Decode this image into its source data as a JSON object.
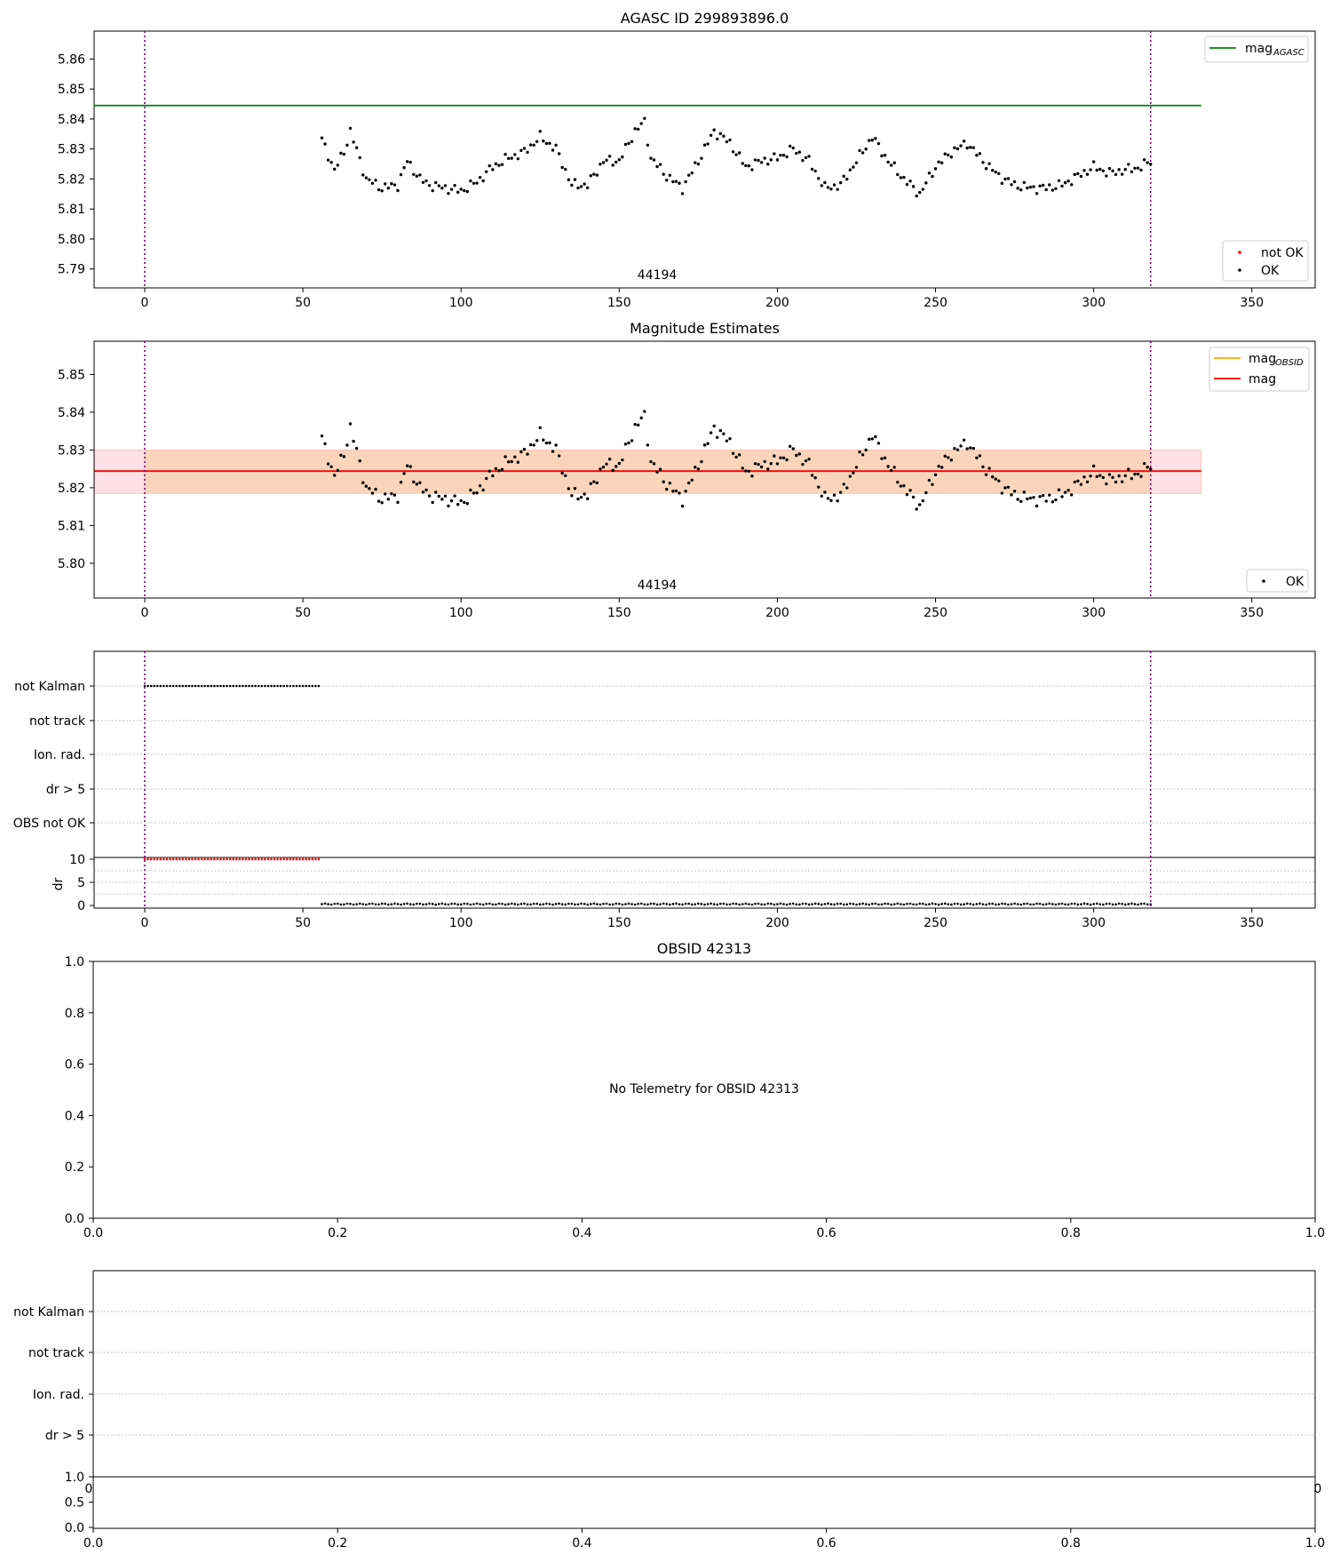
{
  "chart_data": [
    {
      "type": "scatter",
      "title": "AGASC ID 299893896.0",
      "annotation": "44194",
      "xticks": [
        0,
        50,
        100,
        150,
        200,
        250,
        300,
        350
      ],
      "yticks": [
        5.79,
        5.8,
        5.81,
        5.82,
        5.83,
        5.84,
        5.85,
        5.86
      ],
      "xlim": [
        -16,
        370
      ],
      "ylim": [
        5.7837,
        5.8693
      ],
      "legend": [
        {
          "label": "mag",
          "sub": "AGASC",
          "color": "#008000",
          "kind": "line",
          "placement": "top-right"
        },
        {
          "label": "not OK",
          "color": "#ff0000",
          "kind": "marker",
          "placement": "bottom-right"
        },
        {
          "label": "OK",
          "color": "#000000",
          "kind": "marker",
          "placement": "bottom-right"
        }
      ],
      "hlines": [
        {
          "name": "mag_AGASC",
          "y": 5.8445,
          "x": [
            -16,
            334
          ],
          "color": "#008000"
        }
      ],
      "vlines": [
        {
          "x": 0,
          "color": "#800080"
        },
        {
          "x": 318,
          "color": "#800080"
        }
      ],
      "series": [
        {
          "name": "OK",
          "color": "#000000",
          "x_start": 56,
          "x_end": 318,
          "n": 262
        }
      ]
    },
    {
      "type": "scatter",
      "title": "Magnitude Estimates",
      "annotation": "44194",
      "xticks": [
        0,
        50,
        100,
        150,
        200,
        250,
        300,
        350
      ],
      "yticks": [
        5.8,
        5.81,
        5.82,
        5.83,
        5.84,
        5.85
      ],
      "xlim": [
        -16,
        370
      ],
      "ylim": [
        5.7908,
        5.8588
      ],
      "legend": [
        {
          "label": "mag",
          "sub": "OBSID",
          "color": "#ffa500",
          "kind": "line",
          "placement": "top-right"
        },
        {
          "label": "mag",
          "color": "#ff0000",
          "kind": "line",
          "placement": "top-right"
        },
        {
          "label": "OK",
          "color": "#000000",
          "kind": "marker",
          "placement": "bottom-right"
        }
      ],
      "bands": [
        {
          "x": [
            -16,
            334
          ],
          "y": [
            5.8185,
            5.83
          ],
          "color": "#ffe0e6"
        },
        {
          "x": [
            0,
            318
          ],
          "y": [
            5.8185,
            5.83
          ],
          "color": "#fbd5bb"
        }
      ],
      "hlines": [
        {
          "name": "mag",
          "y": 5.8244,
          "x": [
            -16,
            334
          ],
          "color": "#ff0000"
        }
      ],
      "vlines": [
        {
          "x": 0,
          "color": "#800080"
        },
        {
          "x": 318,
          "color": "#800080"
        }
      ],
      "series": [
        {
          "name": "OK",
          "color": "#000000",
          "x_start": 56,
          "x_end": 318,
          "n": 262
        }
      ]
    },
    {
      "type": "scatter",
      "flags": [
        "not Kalman",
        "not track",
        "Ion. rad.",
        "dr > 5",
        "OBS not OK"
      ],
      "flag_series": [
        {
          "flag": "not Kalman",
          "x_start": 0,
          "x_end": 55,
          "color": "#000000"
        }
      ],
      "dr_ylabel": "dr",
      "dr_yticks": [
        0,
        5,
        10
      ],
      "dr_ylim": [
        0,
        10
      ],
      "xticks": [
        0,
        50,
        100,
        150,
        200,
        250,
        300,
        350
      ],
      "xlim": [
        -16,
        370
      ],
      "dr_series": [
        {
          "name": "dr clipped",
          "color": "#ff0000",
          "x_start": 0,
          "x_end": 55,
          "y": 10
        },
        {
          "name": "dr",
          "color": "#000000",
          "x_start": 56,
          "x_end": 318,
          "y": 0.3
        }
      ],
      "vlines": [
        {
          "x": 0,
          "color": "#800080"
        },
        {
          "x": 318,
          "color": "#800080"
        }
      ]
    },
    {
      "type": "scatter",
      "title": "OBSID 42313",
      "message": "No Telemetry for OBSID 42313",
      "xticks": [
        "0.0",
        "0.2",
        "0.4",
        "0.6",
        "0.8",
        "1.0"
      ],
      "yticks": [
        "0.0",
        "0.2",
        "0.4",
        "0.6",
        "0.8",
        "1.0"
      ],
      "xlim": [
        0,
        1
      ],
      "ylim": [
        0,
        1
      ]
    },
    {
      "type": "scatter",
      "flags": [
        "not Kalman",
        "not track",
        "Ion. rad.",
        "dr > 5"
      ],
      "xticks": [
        "0.0",
        "0.2",
        "0.4",
        "0.6",
        "0.8",
        "1.0"
      ],
      "yticks": [
        "0.0",
        "0.5",
        "1.0"
      ],
      "edge_tick_left": "0",
      "edge_tick_right": "0",
      "xlim": [
        0,
        1
      ],
      "ylim": [
        0,
        1
      ]
    }
  ]
}
